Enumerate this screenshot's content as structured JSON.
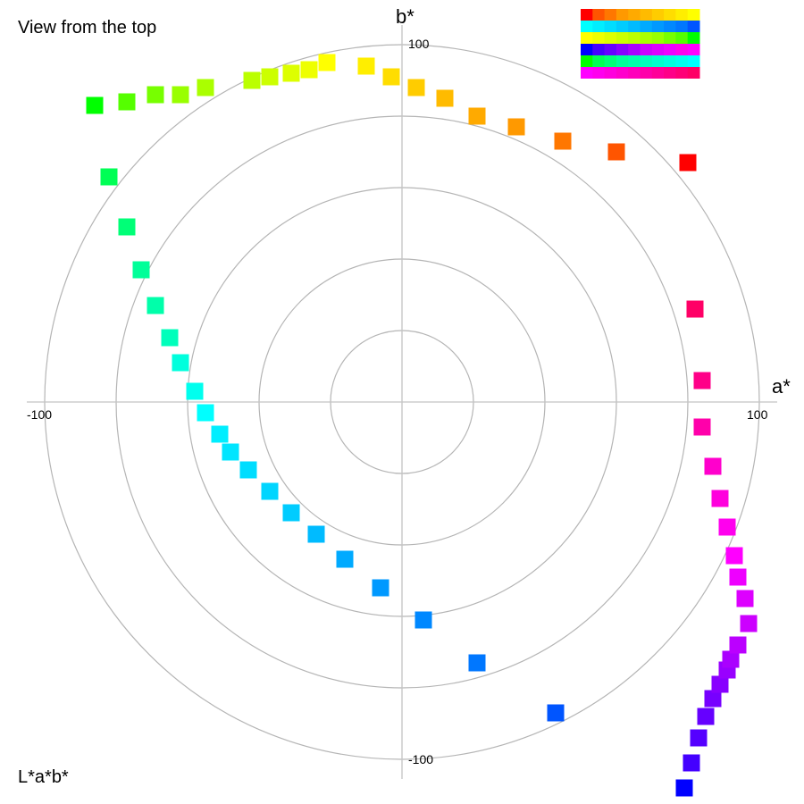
{
  "title": "View from the top",
  "footer_label": "L*a*b*",
  "chart_data": {
    "type": "scatter",
    "projection": "polar",
    "xlabel": "a*",
    "ylabel": "b*",
    "xlim": [
      -100,
      100
    ],
    "ylim": [
      -100,
      100
    ],
    "ring_values": [
      20,
      40,
      60,
      80,
      100
    ],
    "tick_labels": {
      "a_min": "-100",
      "a_max": "100",
      "b_max": "100",
      "b_min": "-100"
    },
    "grid": true,
    "points": [
      {
        "a": 80,
        "b": 67,
        "color": "#ff0000"
      },
      {
        "a": 60,
        "b": 70,
        "color": "#ff5500"
      },
      {
        "a": 45,
        "b": 73,
        "color": "#ff7700"
      },
      {
        "a": 32,
        "b": 77,
        "color": "#ff9900"
      },
      {
        "a": 21,
        "b": 80,
        "color": "#ffaa00"
      },
      {
        "a": 12,
        "b": 85,
        "color": "#ffbb00"
      },
      {
        "a": 4,
        "b": 88,
        "color": "#ffcc00"
      },
      {
        "a": -3,
        "b": 91,
        "color": "#ffdd00"
      },
      {
        "a": -10,
        "b": 94,
        "color": "#ffee00"
      },
      {
        "a": -21,
        "b": 95,
        "color": "#ffff00"
      },
      {
        "a": -26,
        "b": 93,
        "color": "#eeff00"
      },
      {
        "a": -31,
        "b": 92,
        "color": "#ddff00"
      },
      {
        "a": -37,
        "b": 91,
        "color": "#ccff00"
      },
      {
        "a": -42,
        "b": 90,
        "color": "#bbff00"
      },
      {
        "a": -55,
        "b": 88,
        "color": "#aaff00"
      },
      {
        "a": -62,
        "b": 86,
        "color": "#99ff00"
      },
      {
        "a": -69,
        "b": 86,
        "color": "#77ff00"
      },
      {
        "a": -77,
        "b": 84,
        "color": "#55ff00"
      },
      {
        "a": -86,
        "b": 83,
        "color": "#00ff00"
      },
      {
        "a": -82,
        "b": 63,
        "color": "#00ff55"
      },
      {
        "a": -77,
        "b": 49,
        "color": "#00ff77"
      },
      {
        "a": -73,
        "b": 37,
        "color": "#00ff99"
      },
      {
        "a": -69,
        "b": 27,
        "color": "#00ffaa"
      },
      {
        "a": -65,
        "b": 18,
        "color": "#00ffbb"
      },
      {
        "a": -62,
        "b": 11,
        "color": "#00ffdd"
      },
      {
        "a": -58,
        "b": 3,
        "color": "#00ffee"
      },
      {
        "a": -55,
        "b": -3,
        "color": "#00ffff"
      },
      {
        "a": -51,
        "b": -9,
        "color": "#00eeff"
      },
      {
        "a": -48,
        "b": -14,
        "color": "#00e5ff"
      },
      {
        "a": -43,
        "b": -19,
        "color": "#00ddff"
      },
      {
        "a": -37,
        "b": -25,
        "color": "#00d5ff"
      },
      {
        "a": -31,
        "b": -31,
        "color": "#00ccff"
      },
      {
        "a": -24,
        "b": -37,
        "color": "#00bbff"
      },
      {
        "a": -16,
        "b": -44,
        "color": "#00aaff"
      },
      {
        "a": -6,
        "b": -52,
        "color": "#0099ff"
      },
      {
        "a": 6,
        "b": -61,
        "color": "#0088ff"
      },
      {
        "a": 21,
        "b": -73,
        "color": "#0077ff"
      },
      {
        "a": 43,
        "b": -87,
        "color": "#0055ff"
      },
      {
        "a": 79,
        "b": -108,
        "color": "#0000ff"
      },
      {
        "a": 81,
        "b": -101,
        "color": "#4400ff"
      },
      {
        "a": 83,
        "b": -94,
        "color": "#5500ff"
      },
      {
        "a": 85,
        "b": -88,
        "color": "#6600ff"
      },
      {
        "a": 87,
        "b": -83,
        "color": "#7700ff"
      },
      {
        "a": 89,
        "b": -79,
        "color": "#8800ff"
      },
      {
        "a": 91,
        "b": -75,
        "color": "#9900ff"
      },
      {
        "a": 92,
        "b": -72,
        "color": "#aa00ff"
      },
      {
        "a": 94,
        "b": -68,
        "color": "#bb00ff"
      },
      {
        "a": 97,
        "b": -62,
        "color": "#cc00ff"
      },
      {
        "a": 96,
        "b": -55,
        "color": "#dd00ff"
      },
      {
        "a": 94,
        "b": -49,
        "color": "#ee00ff"
      },
      {
        "a": 93,
        "b": -43,
        "color": "#ff00ff"
      },
      {
        "a": 91,
        "b": -35,
        "color": "#ff00ee"
      },
      {
        "a": 89,
        "b": -27,
        "color": "#ff00dd"
      },
      {
        "a": 87,
        "b": -18,
        "color": "#ff00cc"
      },
      {
        "a": 84,
        "b": -7,
        "color": "#ff00aa"
      },
      {
        "a": 84,
        "b": 6,
        "color": "#ff0088"
      },
      {
        "a": 82,
        "b": 26,
        "color": "#ff0066"
      }
    ],
    "legend_strips": [
      [
        "#ff0000",
        "#ff5500",
        "#ff7700",
        "#ff9900",
        "#ffaa00",
        "#ffbb00",
        "#ffcc00",
        "#ffdd00",
        "#ffee00",
        "#ffff00"
      ],
      [
        "#00ffff",
        "#00eeff",
        "#00ddff",
        "#00ccff",
        "#00bbff",
        "#00aaff",
        "#0099ff",
        "#0088ff",
        "#0077ff",
        "#0055ff"
      ],
      [
        "#ffff00",
        "#eeff00",
        "#ddff00",
        "#ccff00",
        "#bbff00",
        "#aaff00",
        "#99ff00",
        "#77ff00",
        "#55ff00",
        "#00ff00"
      ],
      [
        "#0000ff",
        "#4400ff",
        "#6600ff",
        "#8800ff",
        "#aa00ff",
        "#cc00ff",
        "#dd00ff",
        "#ee00ff",
        "#ff00ee",
        "#ff00ff"
      ],
      [
        "#00ff00",
        "#00ff55",
        "#00ff77",
        "#00ff99",
        "#00ffaa",
        "#00ffbb",
        "#00ffcc",
        "#00ffdd",
        "#00ffee",
        "#00ffff"
      ],
      [
        "#ff00ff",
        "#ff00ee",
        "#ff00dd",
        "#ff00cc",
        "#ff00bb",
        "#ff00aa",
        "#ff0099",
        "#ff0088",
        "#ff0077",
        "#ff0066"
      ]
    ]
  }
}
